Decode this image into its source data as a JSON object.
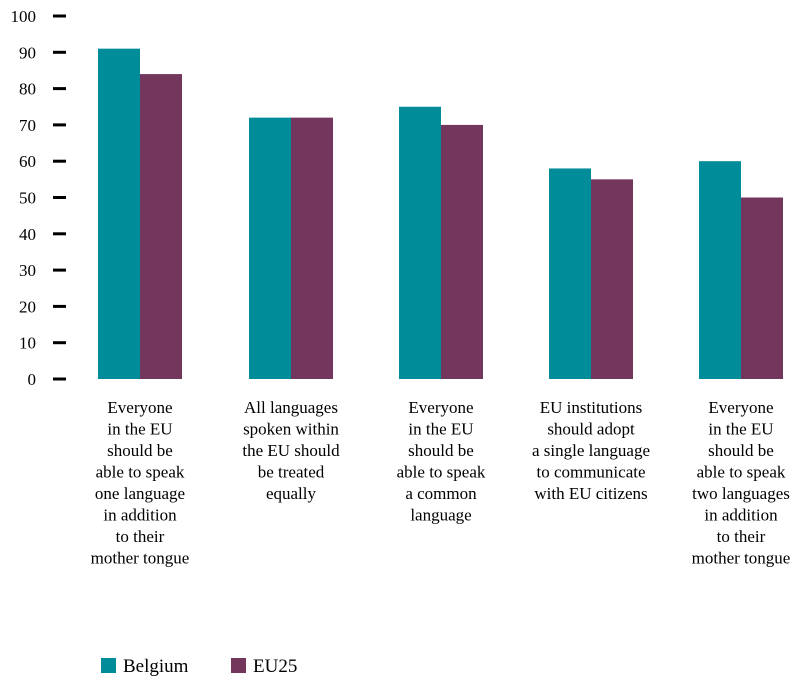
{
  "chart_data": {
    "type": "bar",
    "categories": [
      [
        "Everyone",
        "in the EU",
        "should be",
        "able to speak",
        "one language",
        "in addition",
        "to their",
        "mother tongue"
      ],
      [
        "All languages",
        "spoken within",
        "the EU should",
        "be treated",
        "equally"
      ],
      [
        "Everyone",
        "in the EU",
        "should be",
        "able to speak",
        "a common",
        "language"
      ],
      [
        "EU institutions",
        "should adopt",
        "a single language",
        "to communicate",
        "with EU citizens"
      ],
      [
        "Everyone",
        "in the EU",
        "should be",
        "able to speak",
        "two languages",
        "in addition",
        "to their",
        "mother tongue"
      ]
    ],
    "series": [
      {
        "name": "Belgium",
        "color": "#008c99",
        "values": [
          91,
          72,
          75,
          58,
          60
        ]
      },
      {
        "name": "EU25",
        "color": "#73365d",
        "values": [
          84,
          72,
          70,
          55,
          50
        ]
      }
    ],
    "ylim": [
      0,
      100
    ],
    "yticks": [
      0,
      10,
      20,
      30,
      40,
      50,
      60,
      70,
      80,
      90,
      100
    ],
    "grid": false,
    "legend_position": "bottom-left"
  }
}
